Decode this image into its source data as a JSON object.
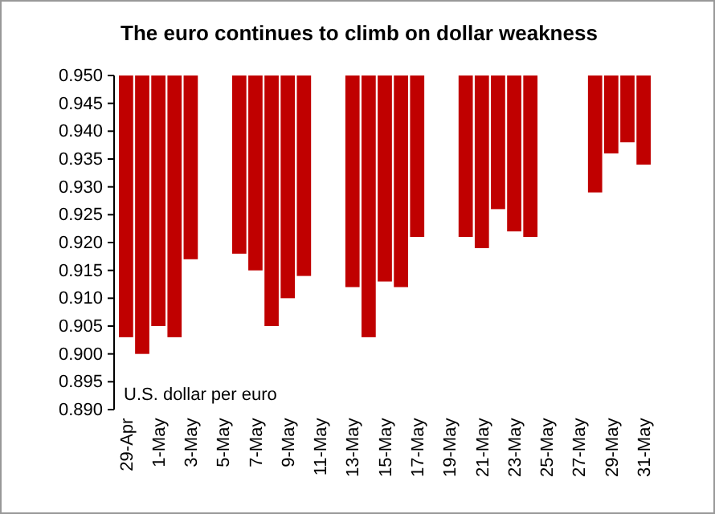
{
  "chart_data": {
    "type": "bar",
    "title": "The euro continues to climb on dollar weakness",
    "annotations": [
      "U.S. dollar per euro"
    ],
    "categories": [
      "29-Apr",
      null,
      "1-May",
      null,
      "3-May",
      null,
      "5-May",
      null,
      "7-May",
      null,
      "9-May",
      null,
      "11-May",
      null,
      "13-May",
      null,
      "15-May",
      null,
      "17-May",
      null,
      "19-May",
      null,
      "21-May",
      null,
      "23-May",
      null,
      "25-May",
      null,
      "27-May",
      null,
      "29-May",
      null,
      "31-May"
    ],
    "base": [
      0.95,
      0.95,
      0.95,
      0.95,
      0.95,
      null,
      null,
      0.95,
      0.95,
      0.95,
      0.95,
      0.95,
      null,
      null,
      0.95,
      0.95,
      0.95,
      0.95,
      0.95,
      null,
      null,
      0.95,
      0.95,
      0.95,
      0.95,
      0.95,
      null,
      null,
      null,
      0.95,
      0.95,
      0.95,
      0.95
    ],
    "values": [
      -0.047,
      -0.05,
      -0.045,
      -0.047,
      -0.033,
      null,
      null,
      -0.032,
      -0.035,
      -0.045,
      -0.04,
      -0.036,
      null,
      null,
      -0.038,
      -0.047,
      -0.037,
      -0.038,
      -0.029,
      null,
      null,
      -0.029,
      -0.031,
      -0.024,
      -0.028,
      -0.029,
      null,
      null,
      null,
      -0.021,
      -0.014,
      -0.012,
      -0.016
    ],
    "color": "#c00000",
    "ylim": [
      0.89,
      0.95
    ],
    "yticks": [
      {
        "value": 0.89,
        "label": "0.890"
      },
      {
        "value": 0.895,
        "label": "0.895"
      },
      {
        "value": 0.9,
        "label": "0.900"
      },
      {
        "value": 0.905,
        "label": "0.905"
      },
      {
        "value": 0.91,
        "label": "0.910"
      },
      {
        "value": 0.915,
        "label": "0.915"
      },
      {
        "value": 0.92,
        "label": "0.920"
      },
      {
        "value": 0.925,
        "label": "0.925"
      },
      {
        "value": 0.93,
        "label": "0.930"
      },
      {
        "value": 0.935,
        "label": "0.935"
      },
      {
        "value": 0.94,
        "label": "0.940"
      },
      {
        "value": 0.945,
        "label": "0.945"
      },
      {
        "value": 0.95,
        "label": "0.950"
      }
    ],
    "grid": false
  }
}
